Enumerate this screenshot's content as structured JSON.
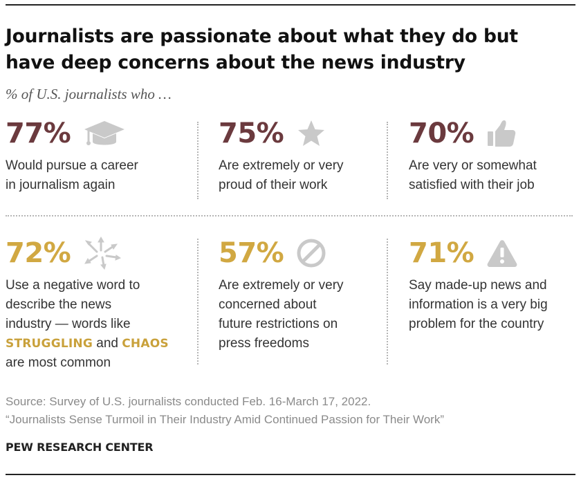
{
  "title": "Journalists are passionate about what they do but have deep concerns about the news industry",
  "subtitle": "% of U.S. journalists who …",
  "colors": {
    "maroon": "#6b3a3e",
    "gold": "#d1a842",
    "icon_gray": "#c9c9c9",
    "highlight": "#c9a13b"
  },
  "chart_data": {
    "type": "table",
    "title": "Journalists are passionate about what they do but have deep concerns about the news industry",
    "subtitle": "% of U.S. journalists who …",
    "items": [
      {
        "value": "77%",
        "icon": "graduation-cap-icon",
        "color": "maroon",
        "label_lines": [
          "Would pursue a career",
          "in journalism again"
        ]
      },
      {
        "value": "75%",
        "icon": "star-icon",
        "color": "maroon",
        "label_lines": [
          "Are extremely or very",
          "proud of their work"
        ]
      },
      {
        "value": "70%",
        "icon": "thumbs-up-icon",
        "color": "maroon",
        "label_lines": [
          "Are very or somewhat",
          "satisfied with their job"
        ]
      },
      {
        "value": "72%",
        "icon": "scattered-arrows-icon",
        "color": "gold",
        "label_lines": [
          "Use a negative word to",
          "describe the news",
          "industry — words like"
        ],
        "label_h1": "STRUGGLING",
        "label_and": "and",
        "label_h2": "CHAOS",
        "label_end": "are most common"
      },
      {
        "value": "57%",
        "icon": "prohibited-icon",
        "color": "gold",
        "label_lines": [
          "Are extremely or very",
          "concerned about",
          "future restrictions on",
          "press freedoms"
        ]
      },
      {
        "value": "71%",
        "icon": "warning-icon",
        "color": "gold",
        "label_lines": [
          "Say made-up news and",
          "information is a very big",
          "problem for the country"
        ]
      }
    ]
  },
  "source_line": "Source: Survey of U.S. journalists conducted Feb. 16-March 17, 2022.",
  "report_line": "“Journalists Sense Turmoil in Their Industry Amid Continued Passion for Their Work”",
  "brand": "PEW RESEARCH CENTER"
}
